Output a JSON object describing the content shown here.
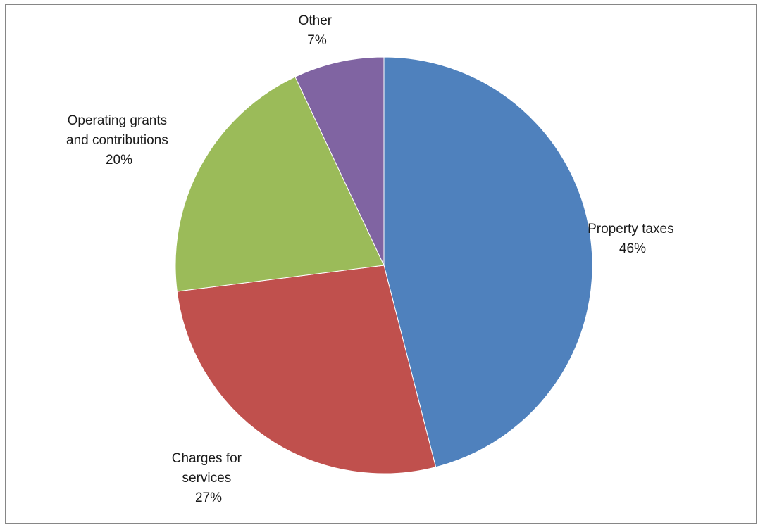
{
  "chart_data": {
    "type": "pie",
    "title": "",
    "slices": [
      {
        "label": "Property taxes",
        "value": 46,
        "percent_label": "46%",
        "color": "#4F81BD"
      },
      {
        "label": "Charges for services",
        "value": 27,
        "percent_label": "27%",
        "color": "#C0504D"
      },
      {
        "label": "Operating grants and contributions",
        "value": 20,
        "percent_label": "20%",
        "color": "#9BBB59"
      },
      {
        "label": "Other",
        "value": 7,
        "percent_label": "7%",
        "color": "#8064A2"
      }
    ],
    "start_angle": "12 o'clock",
    "direction": "clockwise",
    "legend": "none"
  }
}
